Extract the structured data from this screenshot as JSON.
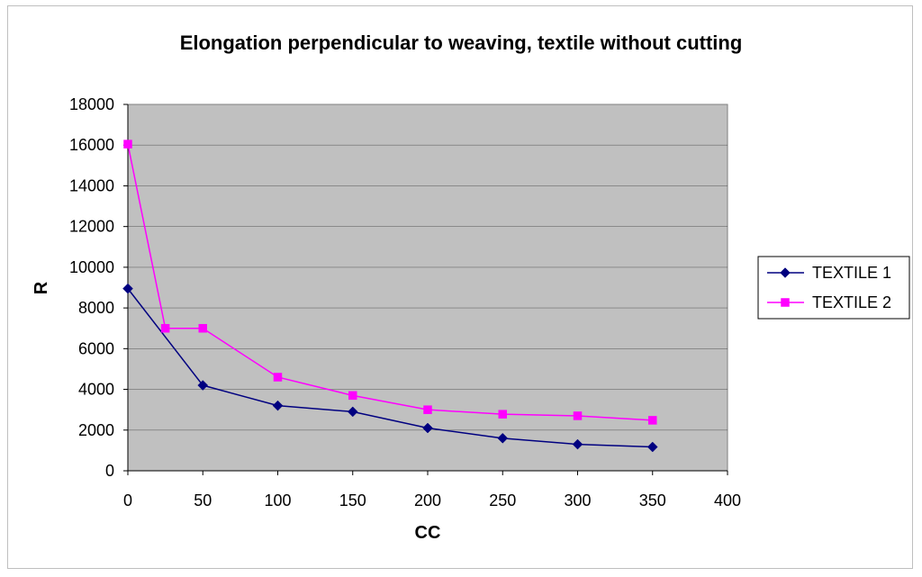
{
  "chart_data": {
    "type": "line",
    "title": "Elongation perpendicular to weaving, textile without cutting",
    "xlabel": "CC",
    "ylabel": "R",
    "xlim": [
      0,
      400
    ],
    "ylim": [
      0,
      18000
    ],
    "x_ticks": [
      0,
      50,
      100,
      150,
      200,
      250,
      300,
      350,
      400
    ],
    "y_ticks": [
      0,
      2000,
      4000,
      6000,
      8000,
      10000,
      12000,
      14000,
      16000,
      18000
    ],
    "grid": "horizontal",
    "plot_background": "#c0c0c0",
    "legend_position": "right",
    "series": [
      {
        "name": "TEXTILE 1",
        "color": "#000080",
        "marker": "diamond",
        "x": [
          0,
          50,
          100,
          150,
          200,
          250,
          300,
          350
        ],
        "y": [
          8950,
          4200,
          3200,
          2900,
          2100,
          1600,
          1300,
          1170
        ]
      },
      {
        "name": "TEXTILE 2",
        "color": "#ff00ff",
        "marker": "square",
        "x": [
          0,
          25,
          50,
          100,
          150,
          200,
          250,
          300,
          350
        ],
        "y": [
          16050,
          7000,
          7000,
          4600,
          3700,
          3000,
          2780,
          2700,
          2480
        ]
      }
    ]
  }
}
